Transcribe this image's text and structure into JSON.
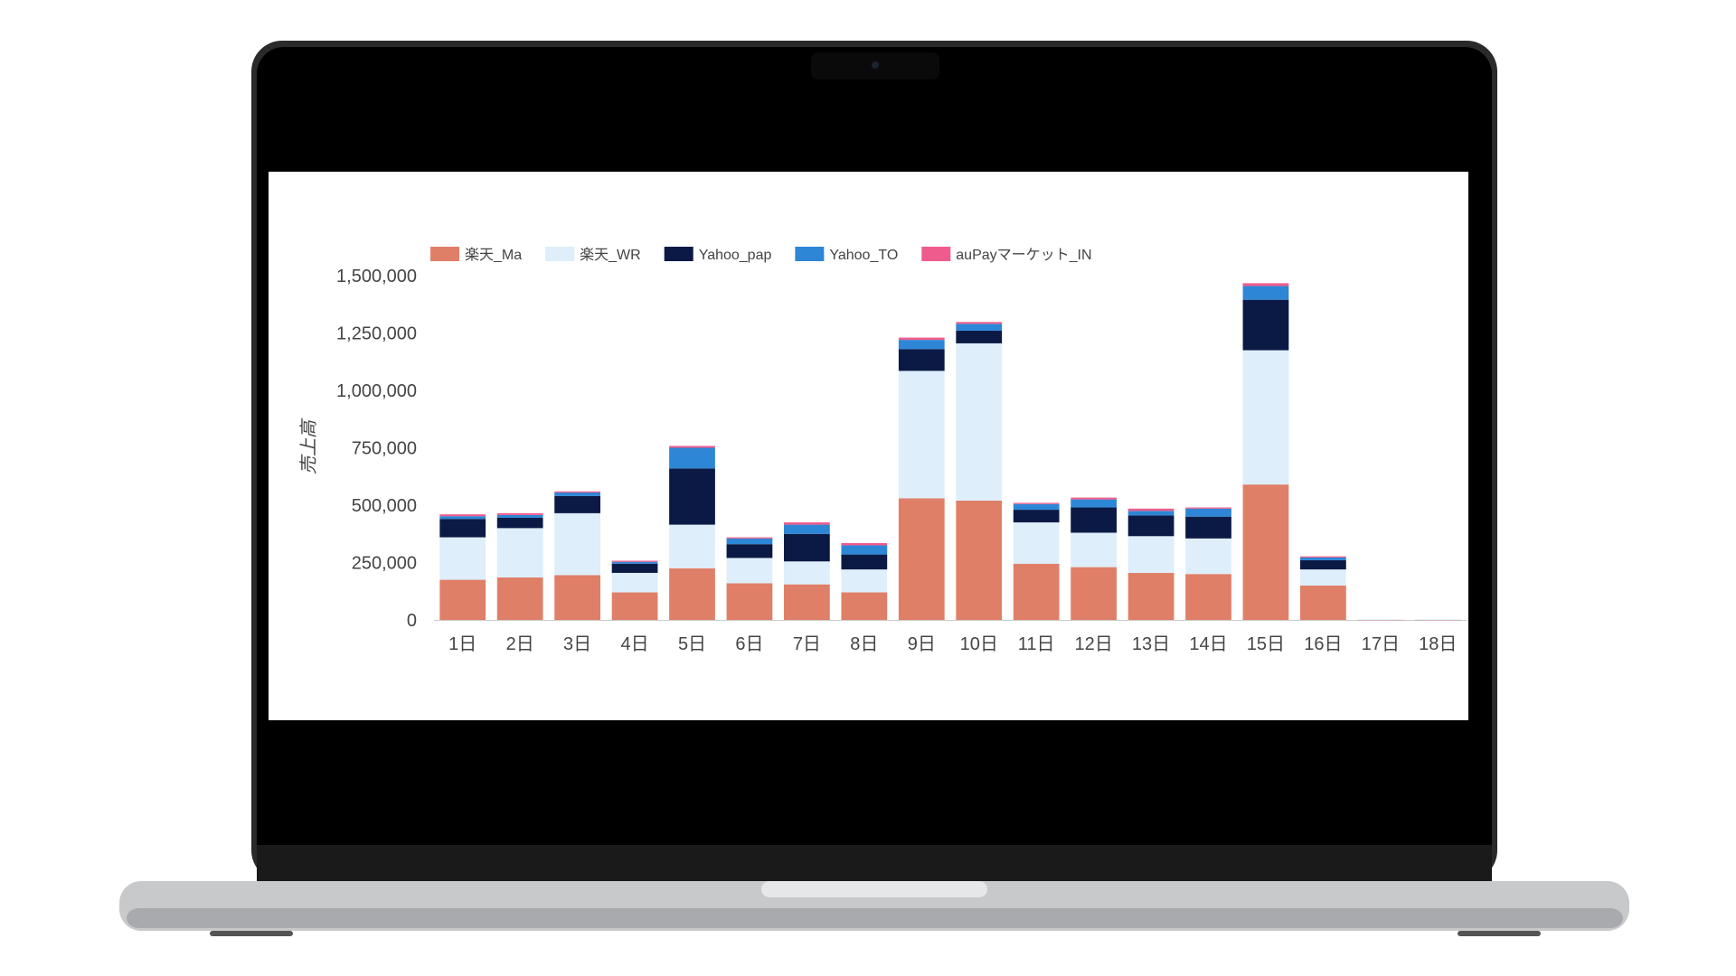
{
  "colors": {
    "rakuten_ma": "#e07f68",
    "rakuten_wr": "#deeefa",
    "yahoo_pap": "#0b1a45",
    "yahoo_to": "#2e86d6",
    "aupay_in": "#ef5b8c",
    "axis_text": "#444444",
    "laptop_bezel": "#000000",
    "laptop_base": "#c8c9cb"
  },
  "chart_data": {
    "type": "bar",
    "stacked": true,
    "ylabel": "売上高",
    "xlabel": "",
    "ylim": [
      0,
      1500000
    ],
    "yticks": [
      "0",
      "250,000",
      "500,000",
      "750,000",
      "1,000,000",
      "1,250,000",
      "1,500,000"
    ],
    "ytick_values": [
      0,
      250000,
      500000,
      750000,
      1000000,
      1250000,
      1500000
    ],
    "grid": false,
    "legend_position": "top-left",
    "categories": [
      "1日",
      "2日",
      "3日",
      "4日",
      "5日",
      "6日",
      "7日",
      "8日",
      "9日",
      "10日",
      "11日",
      "12日",
      "13日",
      "14日",
      "15日",
      "16日",
      "17日",
      "18日"
    ],
    "series": [
      {
        "name": "楽天_Ma",
        "color": "#e07f68",
        "values": [
          175000,
          185000,
          195000,
          120000,
          225000,
          160000,
          155000,
          120000,
          530000,
          520000,
          245000,
          230000,
          205000,
          200000,
          590000,
          150000,
          2000,
          2000
        ]
      },
      {
        "name": "楽天_WR",
        "color": "#deeefa",
        "values": [
          185000,
          215000,
          270000,
          85000,
          190000,
          110000,
          100000,
          100000,
          555000,
          685000,
          180000,
          150000,
          160000,
          155000,
          585000,
          70000,
          1000,
          1000
        ]
      },
      {
        "name": "Yahoo_pap",
        "color": "#0b1a45",
        "values": [
          80000,
          45000,
          75000,
          40000,
          245000,
          60000,
          120000,
          65000,
          95000,
          55000,
          55000,
          110000,
          90000,
          95000,
          220000,
          40000,
          0,
          0
        ]
      },
      {
        "name": "Yahoo_TO",
        "color": "#2e86d6",
        "values": [
          12000,
          12000,
          15000,
          8000,
          90000,
          25000,
          40000,
          40000,
          40000,
          30000,
          25000,
          35000,
          20000,
          35000,
          60000,
          12000,
          0,
          0
        ]
      },
      {
        "name": "auPayマーケット_IN",
        "color": "#ef5b8c",
        "values": [
          8000,
          8000,
          5000,
          5000,
          8000,
          5000,
          10000,
          10000,
          10000,
          8000,
          5000,
          8000,
          10000,
          5000,
          12000,
          5000,
          0,
          0
        ]
      }
    ]
  }
}
